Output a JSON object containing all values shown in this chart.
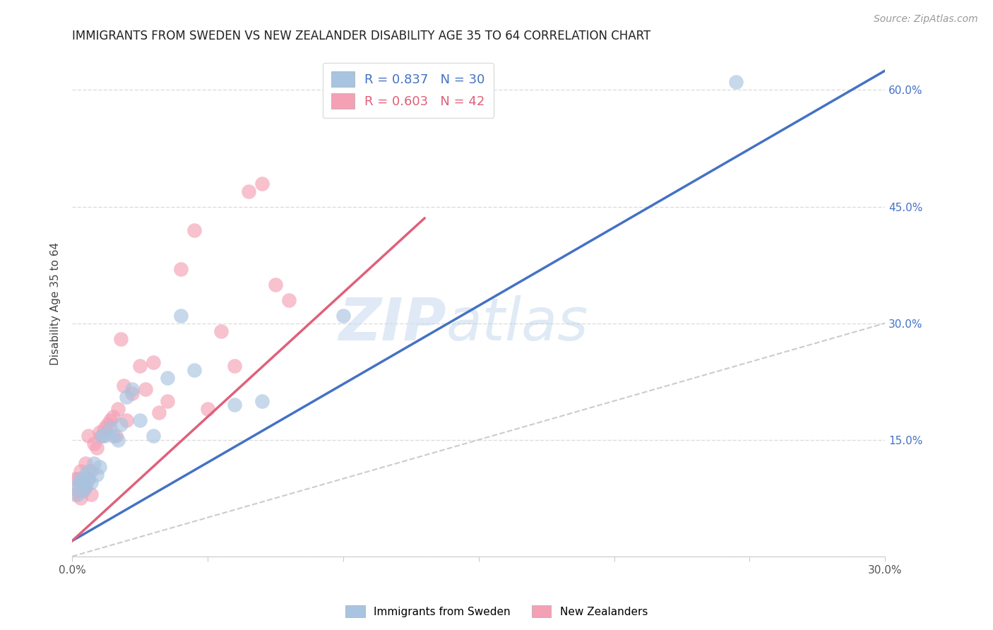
{
  "title": "IMMIGRANTS FROM SWEDEN VS NEW ZEALANDER DISABILITY AGE 35 TO 64 CORRELATION CHART",
  "source": "Source: ZipAtlas.com",
  "ylabel": "Disability Age 35 to 64",
  "xlim": [
    0.0,
    0.3
  ],
  "ylim": [
    0.0,
    0.65
  ],
  "yticks": [
    0.0,
    0.15,
    0.3,
    0.45,
    0.6
  ],
  "ytick_labels": [
    "",
    "15.0%",
    "30.0%",
    "45.0%",
    "60.0%"
  ],
  "xticks": [
    0.0,
    0.05,
    0.1,
    0.15,
    0.2,
    0.25,
    0.3
  ],
  "xtick_labels": [
    "0.0%",
    "",
    "",
    "",
    "",
    "",
    "30.0%"
  ],
  "r_sweden": 0.837,
  "n_sweden": 30,
  "r_nz": 0.603,
  "n_nz": 42,
  "sweden_color": "#a8c4e0",
  "nz_color": "#f4a0b5",
  "sweden_line_color": "#4472c4",
  "nz_line_color": "#e0607a",
  "diagonal_color": "#cccccc",
  "legend_sweden": "Immigrants from Sweden",
  "legend_nz": "New Zealanders",
  "watermark_zip": "ZIP",
  "watermark_atlas": "atlas",
  "sweden_line_x0": 0.0,
  "sweden_line_y0": 0.02,
  "sweden_line_x1": 0.3,
  "sweden_line_y1": 0.625,
  "nz_line_x0": 0.0,
  "nz_line_y0": 0.02,
  "nz_line_x1": 0.13,
  "nz_line_y1": 0.435,
  "sweden_x": [
    0.001,
    0.002,
    0.003,
    0.003,
    0.004,
    0.005,
    0.005,
    0.006,
    0.006,
    0.007,
    0.008,
    0.009,
    0.01,
    0.011,
    0.012,
    0.014,
    0.015,
    0.017,
    0.018,
    0.02,
    0.022,
    0.025,
    0.03,
    0.035,
    0.04,
    0.045,
    0.06,
    0.07,
    0.1,
    0.245
  ],
  "sweden_y": [
    0.09,
    0.08,
    0.095,
    0.1,
    0.085,
    0.09,
    0.105,
    0.1,
    0.11,
    0.095,
    0.12,
    0.105,
    0.115,
    0.155,
    0.155,
    0.165,
    0.155,
    0.15,
    0.17,
    0.205,
    0.215,
    0.175,
    0.155,
    0.23,
    0.31,
    0.24,
    0.195,
    0.2,
    0.31,
    0.61
  ],
  "nz_x": [
    0.001,
    0.001,
    0.002,
    0.002,
    0.003,
    0.003,
    0.004,
    0.004,
    0.005,
    0.005,
    0.006,
    0.006,
    0.007,
    0.007,
    0.008,
    0.009,
    0.01,
    0.011,
    0.012,
    0.013,
    0.014,
    0.015,
    0.016,
    0.017,
    0.018,
    0.019,
    0.02,
    0.022,
    0.025,
    0.027,
    0.03,
    0.032,
    0.035,
    0.04,
    0.045,
    0.05,
    0.055,
    0.06,
    0.065,
    0.07,
    0.075,
    0.08
  ],
  "nz_y": [
    0.1,
    0.08,
    0.085,
    0.1,
    0.075,
    0.11,
    0.085,
    0.095,
    0.09,
    0.12,
    0.1,
    0.155,
    0.11,
    0.08,
    0.145,
    0.14,
    0.16,
    0.155,
    0.165,
    0.17,
    0.175,
    0.18,
    0.155,
    0.19,
    0.28,
    0.22,
    0.175,
    0.21,
    0.245,
    0.215,
    0.25,
    0.185,
    0.2,
    0.37,
    0.42,
    0.19,
    0.29,
    0.245,
    0.47,
    0.48,
    0.35,
    0.33
  ],
  "title_fontsize": 12,
  "axis_label_fontsize": 11,
  "tick_fontsize": 11,
  "right_tick_color": "#4472c4"
}
